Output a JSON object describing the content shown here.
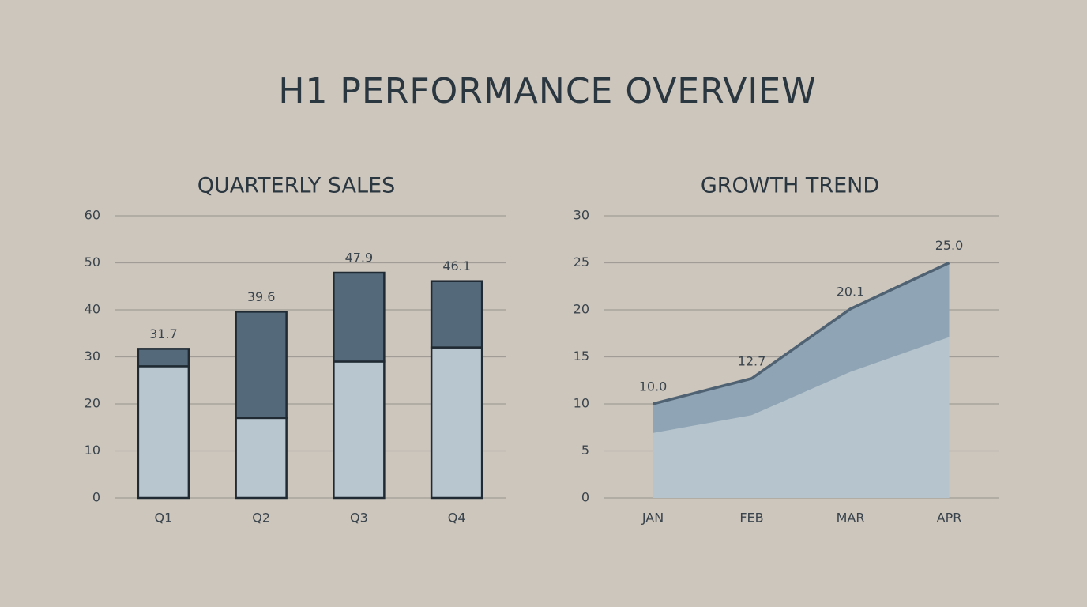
{
  "title": "H1 PERFORMANCE OVERVIEW",
  "chart_data": [
    {
      "type": "bar",
      "stacked": true,
      "title": "QUARTERLY SALES",
      "categories": [
        "Q1",
        "Q2",
        "Q3",
        "Q4"
      ],
      "series": [
        {
          "color": "#b8c6cf",
          "values": [
            28,
            17,
            29,
            32
          ]
        },
        {
          "color": "#546a7b",
          "values": [
            3.7,
            22.6,
            18.9,
            14.1
          ]
        }
      ],
      "total_labels": [
        "31.7",
        "39.6",
        "47.9",
        "46.1"
      ],
      "ylim": [
        0,
        60
      ],
      "yticks": [
        0,
        10,
        20,
        30,
        40,
        50,
        60
      ],
      "grid": true
    },
    {
      "type": "area",
      "title": "GROWTH TREND",
      "categories": [
        "JAN",
        "FEB",
        "MAR",
        "APR"
      ],
      "series": [
        {
          "color": "#8fa4b4",
          "line_color": "#4f6273",
          "values": [
            10,
            12.7,
            20.1,
            25
          ],
          "value_labels": [
            "10.0",
            "12.7",
            "20.1",
            "25.0"
          ]
        },
        {
          "color": "#b6c4cd",
          "values": [
            6.9,
            8.8,
            13.4,
            17.1
          ]
        }
      ],
      "ylim": [
        0,
        30
      ],
      "yticks": [
        0,
        5,
        10,
        15,
        20,
        25,
        30
      ],
      "grid": true
    }
  ]
}
